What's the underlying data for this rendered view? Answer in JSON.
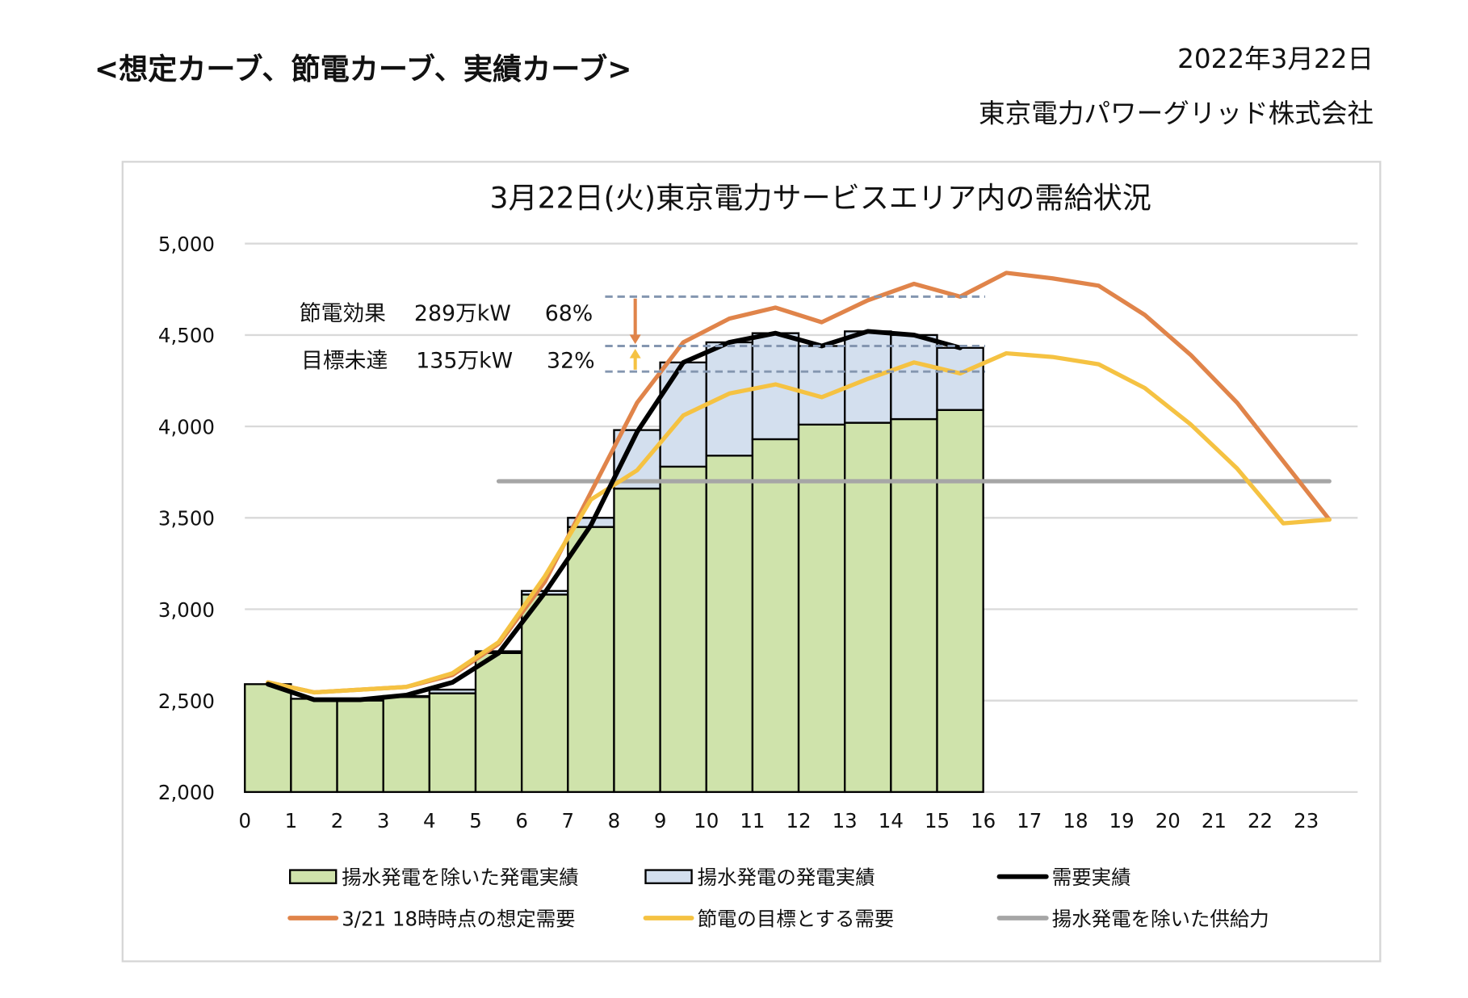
{
  "header": {
    "heading": "<想定カーブ、節電カーブ、実績カーブ>",
    "date": "2022年3月22日",
    "company": "東京電力パワーグリッド株式会社"
  },
  "chart_data": {
    "type": "bar",
    "title": "3月22日(火)東京電力サービスエリア内の需給状況",
    "xlabel": "",
    "ylabel": "",
    "ylim": [
      2000,
      5000
    ],
    "yticks": [
      "2,000",
      "2,500",
      "3,000",
      "3,500",
      "4,000",
      "4,500",
      "5,000"
    ],
    "ytick_values": [
      2000,
      2500,
      3000,
      3500,
      4000,
      4500,
      5000
    ],
    "xticks": [
      "0",
      "1",
      "2",
      "3",
      "4",
      "5",
      "6",
      "7",
      "8",
      "9",
      "10",
      "11",
      "12",
      "13",
      "14",
      "15",
      "16",
      "17",
      "18",
      "19",
      "20",
      "21",
      "22",
      "23"
    ],
    "grid": true,
    "legend_position": "bottom",
    "bars": {
      "hours": [
        0,
        1,
        2,
        3,
        4,
        5,
        6,
        7,
        8,
        9,
        10,
        11,
        12,
        13,
        14,
        15
      ],
      "series": [
        {
          "name": "揚水発電を除いた発電実績",
          "color": "#cfe3ab",
          "values": [
            2590,
            2510,
            2500,
            2520,
            2540,
            2760,
            3080,
            3450,
            3660,
            3780,
            3840,
            3930,
            4010,
            4020,
            4040,
            4090
          ]
        },
        {
          "name": "揚水発電の発電実績",
          "color": "#d3dfee",
          "values": [
            0,
            0,
            0,
            5,
            20,
            10,
            20,
            50,
            320,
            570,
            620,
            580,
            430,
            500,
            460,
            340
          ]
        }
      ]
    },
    "lines": {
      "x": [
        0.5,
        1.5,
        2.5,
        3.5,
        4.5,
        5.5,
        6.5,
        7.5,
        8.5,
        9.5,
        10.5,
        11.5,
        12.5,
        13.5,
        14.5,
        15.5,
        16.5,
        17.5,
        18.5,
        19.5,
        20.5,
        21.5,
        22.5,
        23.5
      ],
      "series": [
        {
          "name": "3/21 18時時点の想定需要",
          "color": "#e0844a",
          "values": [
            2600,
            2545,
            2560,
            2575,
            2640,
            2810,
            3150,
            3640,
            4130,
            4460,
            4590,
            4650,
            4570,
            4690,
            4780,
            4710,
            4840,
            4810,
            4770,
            4610,
            4390,
            4130,
            3810,
            3490
          ]
        },
        {
          "name": "節電の目標とする需要",
          "color": "#f5c242",
          "values": [
            2600,
            2545,
            2560,
            2575,
            2650,
            2820,
            3180,
            3600,
            3760,
            4060,
            4180,
            4230,
            4160,
            4260,
            4350,
            4290,
            4400,
            4380,
            4340,
            4210,
            4010,
            3770,
            3470,
            3490
          ]
        },
        {
          "name": "需要実績",
          "color": "#000000",
          "values": [
            2590,
            2505,
            2505,
            2530,
            2600,
            2760,
            3090,
            3460,
            3970,
            4350,
            4460,
            4510,
            4440,
            4520,
            4500,
            4430
          ]
        },
        {
          "name": "揚水発電を除いた供給力",
          "color": "#a6a6a6",
          "x": [
            5.5,
            23.5
          ],
          "values": [
            3700,
            3700
          ]
        }
      ]
    },
    "annotations": {
      "dashed_levels": [
        4710,
        4440,
        4300
      ],
      "saving_effect": {
        "label": "節電効果",
        "amount": "289万kW",
        "percent": "68%",
        "color": "#e0844a"
      },
      "shortfall": {
        "label": "目標未達",
        "amount": "135万kW",
        "percent": "32%",
        "color": "#f5c242"
      }
    }
  }
}
